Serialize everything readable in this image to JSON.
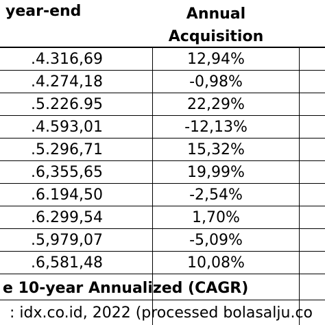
{
  "table": {
    "headers": {
      "year_end": "year-end",
      "annual_line1": "Annual",
      "annual_line2": "Acquisition"
    },
    "rows": [
      {
        "year_end": ".4.316,69",
        "acquisition": "12,94%"
      },
      {
        "year_end": ".4.274,18",
        "acquisition": "-0,98%"
      },
      {
        "year_end": ".5.226.95",
        "acquisition": "22,29%"
      },
      {
        "year_end": ".4.593,01",
        "acquisition": "-12,13%"
      },
      {
        "year_end": ".5.296,71",
        "acquisition": "15,32%"
      },
      {
        "year_end": ".6,355,65",
        "acquisition": "19,99%"
      },
      {
        "year_end": ".6.194,50",
        "acquisition": "-2,54%"
      },
      {
        "year_end": ".6.299,54",
        "acquisition": "1,70%"
      },
      {
        "year_end": ".5,979,07",
        "acquisition": "-5,09%"
      },
      {
        "year_end": ".6,581,48",
        "acquisition": "10,08%"
      }
    ],
    "cagr_label": "e 10-year Annualized (CAGR)",
    "source": ": idx.co.id, 2022 (processed bolasalju.co"
  }
}
